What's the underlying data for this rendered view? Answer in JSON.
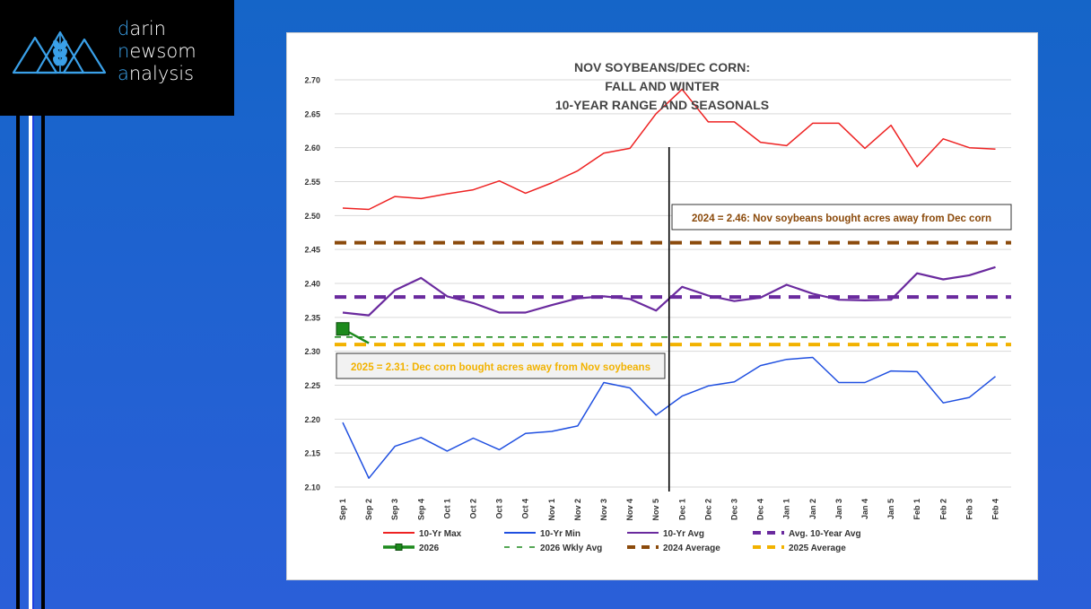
{
  "brand": {
    "line1_first": "d",
    "line1_rest": "arin",
    "line2_first": "n",
    "line2_rest": "ewsom",
    "line3_first": "a",
    "line3_rest": "nalysis",
    "accent_color": "#3aa0e8",
    "icon": "mountains-wheat-icon"
  },
  "chart_data": {
    "type": "line",
    "title_lines": [
      "NOV SOYBEANS/DEC CORN:",
      "FALL AND WINTER",
      "10-YEAR RANGE AND SEASONALS"
    ],
    "categories": [
      "Sep 1",
      "Sep 2",
      "Sep 3",
      "Sep 4",
      "Oct 1",
      "Oct 2",
      "Oct 3",
      "Oct 4",
      "Nov 1",
      "Nov 2",
      "Nov 3",
      "Nov 4",
      "Nov 5",
      "Dec 1",
      "Dec 2",
      "Dec 3",
      "Dec 4",
      "Jan 1",
      "Jan 2",
      "Jan 3",
      "Jan 4",
      "Jan 5",
      "Feb 1",
      "Feb 2",
      "Feb 3",
      "Feb 4"
    ],
    "ylim": [
      2.1,
      2.7
    ],
    "yticks": [
      "2.10",
      "2.15",
      "2.20",
      "2.25",
      "2.30",
      "2.35",
      "2.40",
      "2.45",
      "2.50",
      "2.55",
      "2.60",
      "2.65",
      "2.70"
    ],
    "grid": true,
    "current_week_marker_after": "Nov 5",
    "series": [
      {
        "name": "10-Yr Max",
        "color": "#ee2222",
        "style": "solid",
        "values": [
          2.511,
          2.509,
          2.528,
          2.525,
          2.532,
          2.538,
          2.551,
          2.533,
          2.548,
          2.566,
          2.592,
          2.599,
          2.65,
          2.686,
          2.638,
          2.638,
          2.608,
          2.603,
          2.636,
          2.636,
          2.599,
          2.633,
          2.572,
          2.613,
          2.6,
          2.598
        ]
      },
      {
        "name": "10-Yr Min",
        "color": "#1f4fe0",
        "style": "solid",
        "values": [
          2.195,
          2.113,
          2.16,
          2.173,
          2.153,
          2.172,
          2.155,
          2.179,
          2.182,
          2.19,
          2.254,
          2.246,
          2.206,
          2.234,
          2.249,
          2.255,
          2.279,
          2.288,
          2.291,
          2.254,
          2.254,
          2.271,
          2.27,
          2.224,
          2.232,
          2.263
        ]
      },
      {
        "name": "10-Yr Avg",
        "color": "#6a2a9e",
        "style": "solid",
        "values": [
          2.357,
          2.353,
          2.39,
          2.408,
          2.381,
          2.371,
          2.357,
          2.357,
          2.368,
          2.378,
          2.381,
          2.377,
          2.36,
          2.395,
          2.382,
          2.374,
          2.379,
          2.398,
          2.385,
          2.376,
          2.375,
          2.376,
          2.415,
          2.406,
          2.412,
          2.424
        ]
      },
      {
        "name": "Avg. 10-Year Avg",
        "color": "#6a2a9e",
        "style": "dashed-thick",
        "constant": 2.38
      },
      {
        "name": "2026",
        "color": "#1d8a1d",
        "style": "marker",
        "points": [
          {
            "x": "Sep 1",
            "y": 2.333
          }
        ],
        "arrow_to": {
          "x": "Sep 2",
          "y": 2.312
        }
      },
      {
        "name": "2026 Wkly Avg",
        "color": "#1d8a1d",
        "style": "dashed-thin",
        "constant": 2.321
      },
      {
        "name": "2024 Average",
        "color": "#8b4a0b",
        "style": "dashed-thick",
        "constant": 2.46
      },
      {
        "name": "2025 Average",
        "color": "#f2b200",
        "style": "dashed-thick",
        "constant": 2.31
      }
    ],
    "annotations": [
      {
        "text": "2024 = 2.46: Nov soybeans bought acres away from Dec corn",
        "color": "#8b4a0b"
      },
      {
        "text": "2025 = 2.31: Dec corn bought acres away from Nov soybeans",
        "color": "#f2b200"
      }
    ],
    "legend_position": "bottom"
  }
}
